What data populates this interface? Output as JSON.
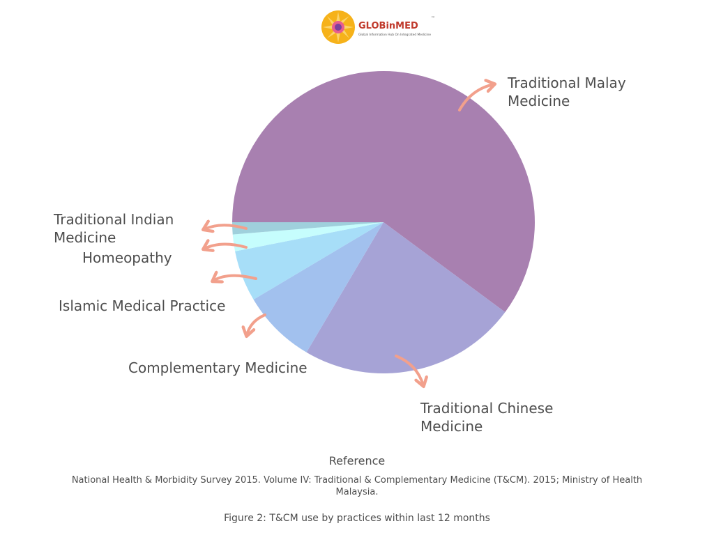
{
  "logo": {
    "brand": "GLOBinMED",
    "tagline": "Global Information Hub On Integrated Medicine",
    "trademark": "™",
    "colors": {
      "sun": "#f6b21a",
      "brand_text": "#c0392b",
      "tagline_text": "#555555"
    }
  },
  "chart_data": {
    "type": "pie",
    "categories": [
      "Traditional Malay Medicine",
      "Traditional Chinese Medicine",
      "Complementary Medicine",
      "Islamic Medical Practice",
      "Homeopathy",
      "Traditional Indian Medicine"
    ],
    "values": [
      60.5,
      23.5,
      8.0,
      5.5,
      1.8,
      1.3
    ],
    "colors": [
      "#a880b0",
      "#a6a3d6",
      "#a2c1ee",
      "#a7def8",
      "#c6fdfd",
      "#9fd0dc"
    ],
    "start_angle_deg": 180,
    "direction": "clockwise",
    "arrow_color": "#f2a08c"
  },
  "reference": {
    "heading": "Reference",
    "text": "National Health & Morbidity Survey 2015. Volume IV: Traditional & Complementary Medicine (T&CM). 2015; Ministry of Health Malaysia."
  },
  "caption": "Figure 2: T&CM use by practices within last 12 months"
}
